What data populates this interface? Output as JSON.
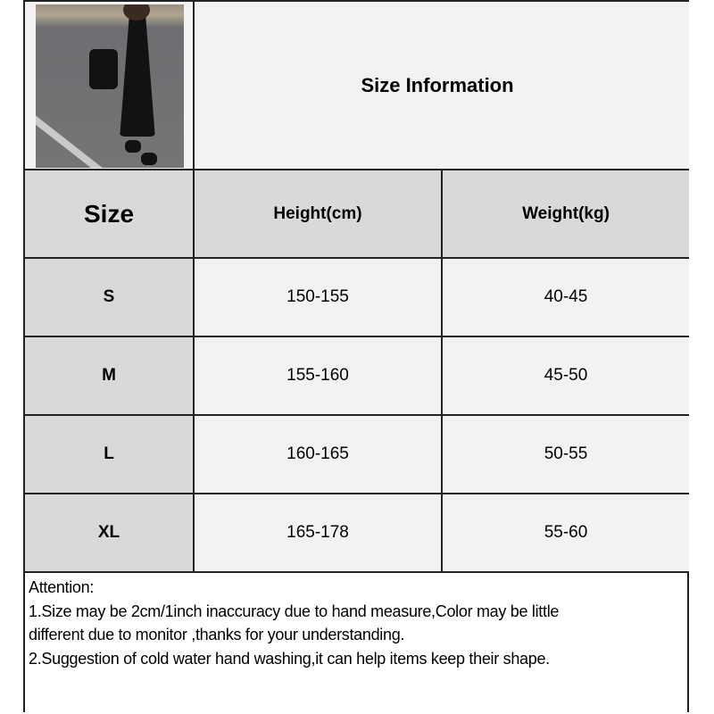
{
  "title": "Size Information",
  "table": {
    "headers": [
      "Size",
      "Height(cm)",
      "Weight(kg)"
    ],
    "rows": [
      {
        "size": "S",
        "height": "150-155",
        "weight": "40-45"
      },
      {
        "size": "M",
        "height": "155-160",
        "weight": "45-50"
      },
      {
        "size": "L",
        "height": "160-165",
        "weight": "50-55"
      },
      {
        "size": "XL",
        "height": "165-178",
        "weight": "55-60"
      }
    ]
  },
  "notes": {
    "heading": "Attention:",
    "line1a": "1.Size may be 2cm/1inch inaccuracy due to hand measure,Color may be little",
    "line1b": "different due to monitor ,thanks for your understanding.",
    "line2": "2.Suggestion of cold water hand washing,it can help items keep their shape."
  },
  "colors": {
    "header_gray": "#d9d9d9",
    "cell_light": "#f2f2f2",
    "border": "#222222"
  }
}
